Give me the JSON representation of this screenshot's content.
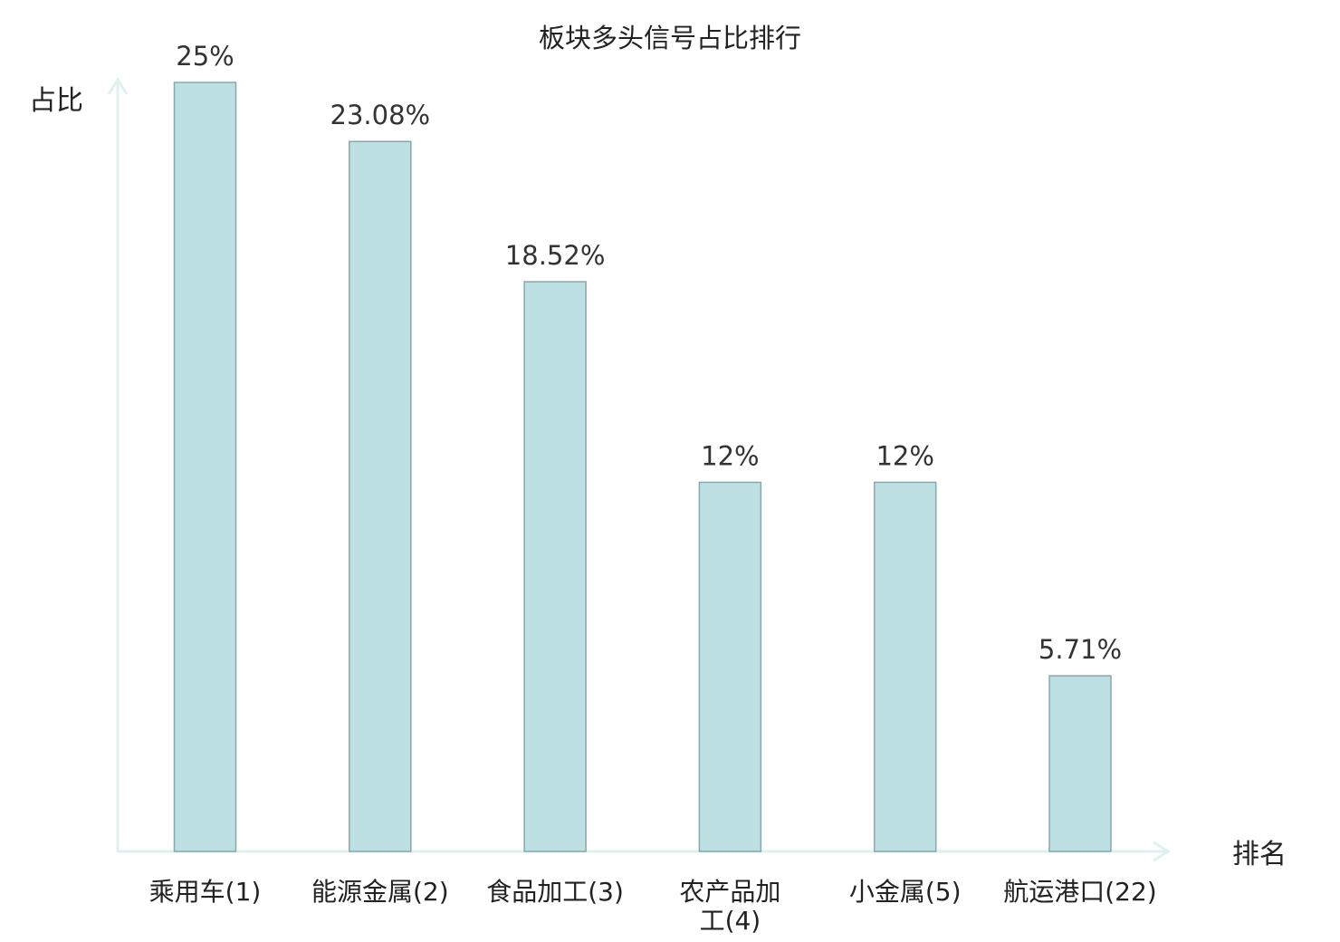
{
  "chart_data": {
    "type": "bar",
    "title": "板块多头信号占比排行",
    "xlabel": "排名",
    "ylabel": "占比",
    "categories": [
      "乘用车(1)",
      "能源金属(2)",
      "食品加工(3)",
      "农产品加工(4)",
      "小金属(5)",
      "航运港口(22)"
    ],
    "category_lines": [
      [
        "乘用车(1)"
      ],
      [
        "能源金属(2)"
      ],
      [
        "食品加工(3)"
      ],
      [
        "农产品加",
        "工(4)"
      ],
      [
        "小金属(5)"
      ],
      [
        "航运港口(22)"
      ]
    ],
    "values": [
      25,
      23.08,
      18.52,
      12,
      12,
      5.71
    ],
    "value_labels": [
      "25%",
      "23.08%",
      "18.52%",
      "12%",
      "12%",
      "5.71%"
    ],
    "highlight_index": 5,
    "ylim": [
      0,
      25
    ],
    "grid": false,
    "legend": "none"
  },
  "colors": {
    "bar_fill": "#bde0e3",
    "bar_stroke": "#8aa7aa",
    "axis": "#dff1ee",
    "text": "#222222",
    "value_text": "#333333",
    "highlight_text": "#e0191c"
  }
}
